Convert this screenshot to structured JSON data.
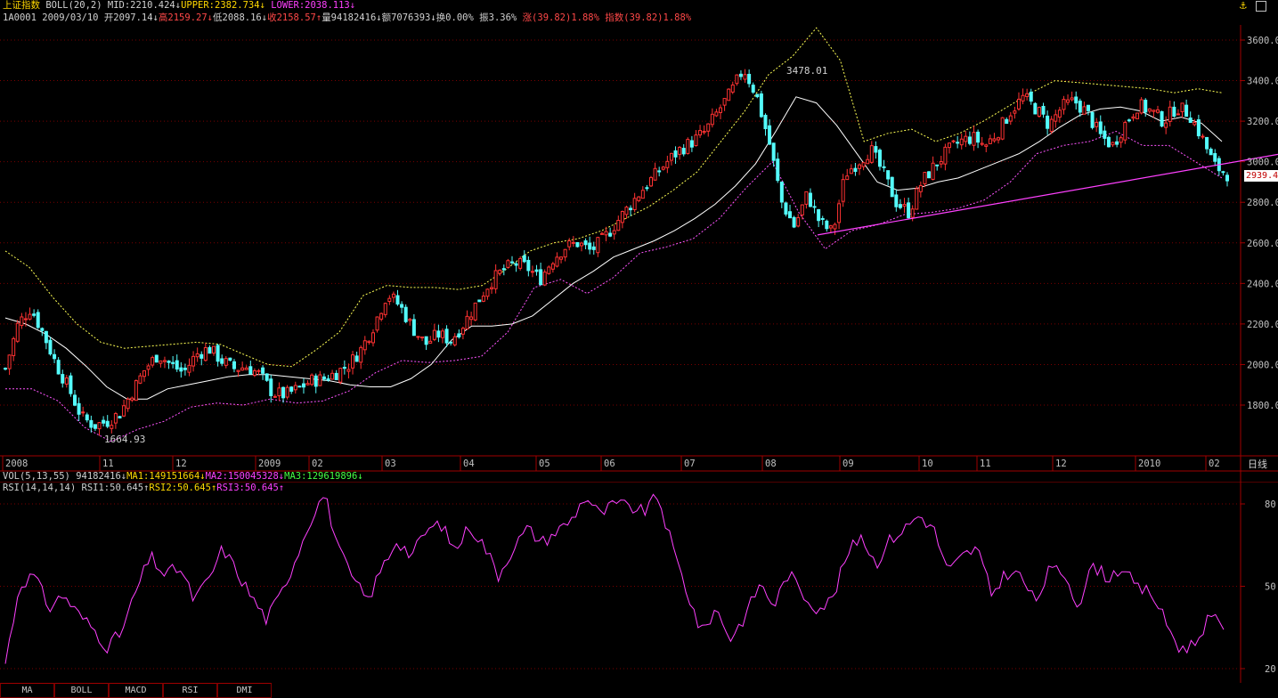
{
  "header": {
    "index_name": "上证指数",
    "indicator": "BOLL(20,2)",
    "mid": "MID:2210.424",
    "upper": "UPPER:2382.734",
    "lower": "LOWER:2038.113",
    "arrow_down": "↓",
    "arrow_up": "↑"
  },
  "info": {
    "code": "1A0001",
    "date": "2009/03/10",
    "open": "开2097.14",
    "high": "高2159.27",
    "low": "低2088.16",
    "close": "收2158.57",
    "vol": "量94182416",
    "amount": "额7076393",
    "turnover": "换0.00%",
    "amplitude": "振3.36%",
    "change": "涨(39.82)1.88%",
    "index_change": "指数(39.82)1.88%"
  },
  "vol_line": {
    "label": "VOL(5,13,55)",
    "value": "94182416",
    "ma1": "MA1:149151664",
    "ma2": "MA2:150045328",
    "ma3": "MA3:129619896"
  },
  "rsi_line": {
    "label": "RSI(14,14,14)",
    "rsi1": "RSI1:50.645",
    "rsi2": "RSI2:50.645",
    "rsi3": "RSI3:50.645"
  },
  "annotations": {
    "peak": "3478.01",
    "trough": "1664.93",
    "current": "2939.4"
  },
  "period_label": "日线",
  "tabs": [
    "MA",
    "BOLL",
    "MACD",
    "RSI",
    "DMI"
  ],
  "colors": {
    "up": "#ff3232",
    "down": "#54fcfc",
    "mid": "#ffffff",
    "upper": "#ffff54",
    "lower": "#ff54ff",
    "trend": "#ff40ff",
    "axis": "#a00000"
  },
  "chart_data": [
    {
      "type": "candlestick",
      "title": "上证指数 BOLL(20,2)",
      "ylim": [
        1560,
        3700
      ],
      "y_ticks": [
        1800,
        2000,
        2200,
        2400,
        2600,
        2800,
        3000,
        3200,
        3400,
        3600
      ],
      "x_labels": [
        "2008",
        "11",
        "12",
        "2009",
        "02",
        "03",
        "04",
        "05",
        "06",
        "07",
        "08",
        "09",
        "10",
        "11",
        "12",
        "2010",
        "02"
      ],
      "close_series": [
        1980,
        2200,
        2280,
        2150,
        2000,
        1880,
        1740,
        1700,
        1720,
        1760,
        1870,
        1980,
        2050,
        2000,
        1960,
        2050,
        2080,
        2020,
        1980,
        1990,
        1950,
        1860,
        1850,
        1880,
        1920,
        1930,
        1960,
        2000,
        2080,
        2200,
        2350,
        2290,
        2180,
        2100,
        2150,
        2120,
        2200,
        2300,
        2400,
        2460,
        2500,
        2480,
        2420,
        2520,
        2580,
        2600,
        2560,
        2620,
        2700,
        2780,
        2860,
        2930,
        3000,
        3060,
        3100,
        3150,
        3250,
        3340,
        3460,
        3330,
        3100,
        2800,
        2680,
        2840,
        2700,
        2650,
        2940,
        3000,
        3060,
        2940,
        2800,
        2750,
        2900,
        2980,
        3050,
        3100,
        3120,
        3080,
        3150,
        3250,
        3320,
        3260,
        3180,
        3270,
        3300,
        3240,
        3130,
        3080,
        3190,
        3280,
        3250,
        3200,
        3270,
        3240,
        3120,
        2980,
        2940
      ],
      "mid_series": [
        2230,
        2200,
        2150,
        2080,
        1990,
        1890,
        1830,
        1830,
        1880,
        1900,
        1920,
        1940,
        1950,
        1950,
        1940,
        1930,
        1920,
        1900,
        1890,
        1890,
        1930,
        2000,
        2120,
        2190,
        2190,
        2200,
        2240,
        2320,
        2400,
        2460,
        2530,
        2570,
        2610,
        2660,
        2720,
        2790,
        2880,
        2990,
        3150,
        3320,
        3290,
        3180,
        3040,
        2900,
        2860,
        2870,
        2900,
        2920,
        2960,
        3000,
        3040,
        3100,
        3170,
        3230,
        3260,
        3270,
        3250,
        3200,
        3220,
        3190,
        3100
      ],
      "upper_series": [
        2560,
        2480,
        2330,
        2200,
        2110,
        2080,
        2090,
        2100,
        2110,
        2100,
        2050,
        2000,
        1990,
        2070,
        2160,
        2340,
        2390,
        2380,
        2380,
        2370,
        2390,
        2470,
        2560,
        2600,
        2620,
        2660,
        2720,
        2780,
        2860,
        2950,
        3100,
        3250,
        3430,
        3520,
        3660,
        3500,
        3100,
        3140,
        3160,
        3100,
        3140,
        3200,
        3270,
        3340,
        3400,
        3390,
        3380,
        3370,
        3360,
        3340,
        3360,
        3340
      ],
      "lower_series": [
        1880,
        1880,
        1820,
        1690,
        1620,
        1680,
        1720,
        1790,
        1810,
        1800,
        1830,
        1810,
        1820,
        1870,
        1960,
        2020,
        2010,
        2020,
        2040,
        2160,
        2380,
        2420,
        2350,
        2430,
        2550,
        2580,
        2620,
        2720,
        2870,
        3000,
        2750,
        2570,
        2660,
        2690,
        2740,
        2750,
        2770,
        2810,
        2900,
        3040,
        3080,
        3100,
        3150,
        3080,
        3080,
        3000,
        2920
      ],
      "trendline": [
        {
          "x": "2009-08-31",
          "y": 2639
        },
        {
          "x": "2010-02-26",
          "y": 3010
        }
      ]
    },
    {
      "type": "line",
      "title": "RSI(14,14,14)",
      "ylim": [
        20,
        85
      ],
      "y_ticks": [
        20,
        50,
        80
      ],
      "series": [
        {
          "name": "RSI3",
          "values": [
            22,
            51,
            54,
            42,
            47,
            40,
            35,
            28,
            33,
            48,
            61,
            54,
            57,
            45,
            52,
            64,
            55,
            46,
            38,
            47,
            60,
            74,
            84,
            63,
            52,
            45,
            57,
            67,
            61,
            70,
            73,
            63,
            72,
            65,
            54,
            64,
            71,
            66,
            70,
            74,
            83,
            76,
            80,
            79,
            77,
            83,
            64,
            48,
            33,
            42,
            31,
            39,
            51,
            43,
            55,
            47,
            42,
            45,
            61,
            69,
            58,
            67,
            71,
            76,
            71,
            55,
            61,
            64,
            47,
            55,
            54,
            44,
            56,
            55,
            43,
            58,
            53,
            57,
            49,
            48,
            37,
            27,
            29,
            39,
            35
          ]
        }
      ]
    }
  ]
}
